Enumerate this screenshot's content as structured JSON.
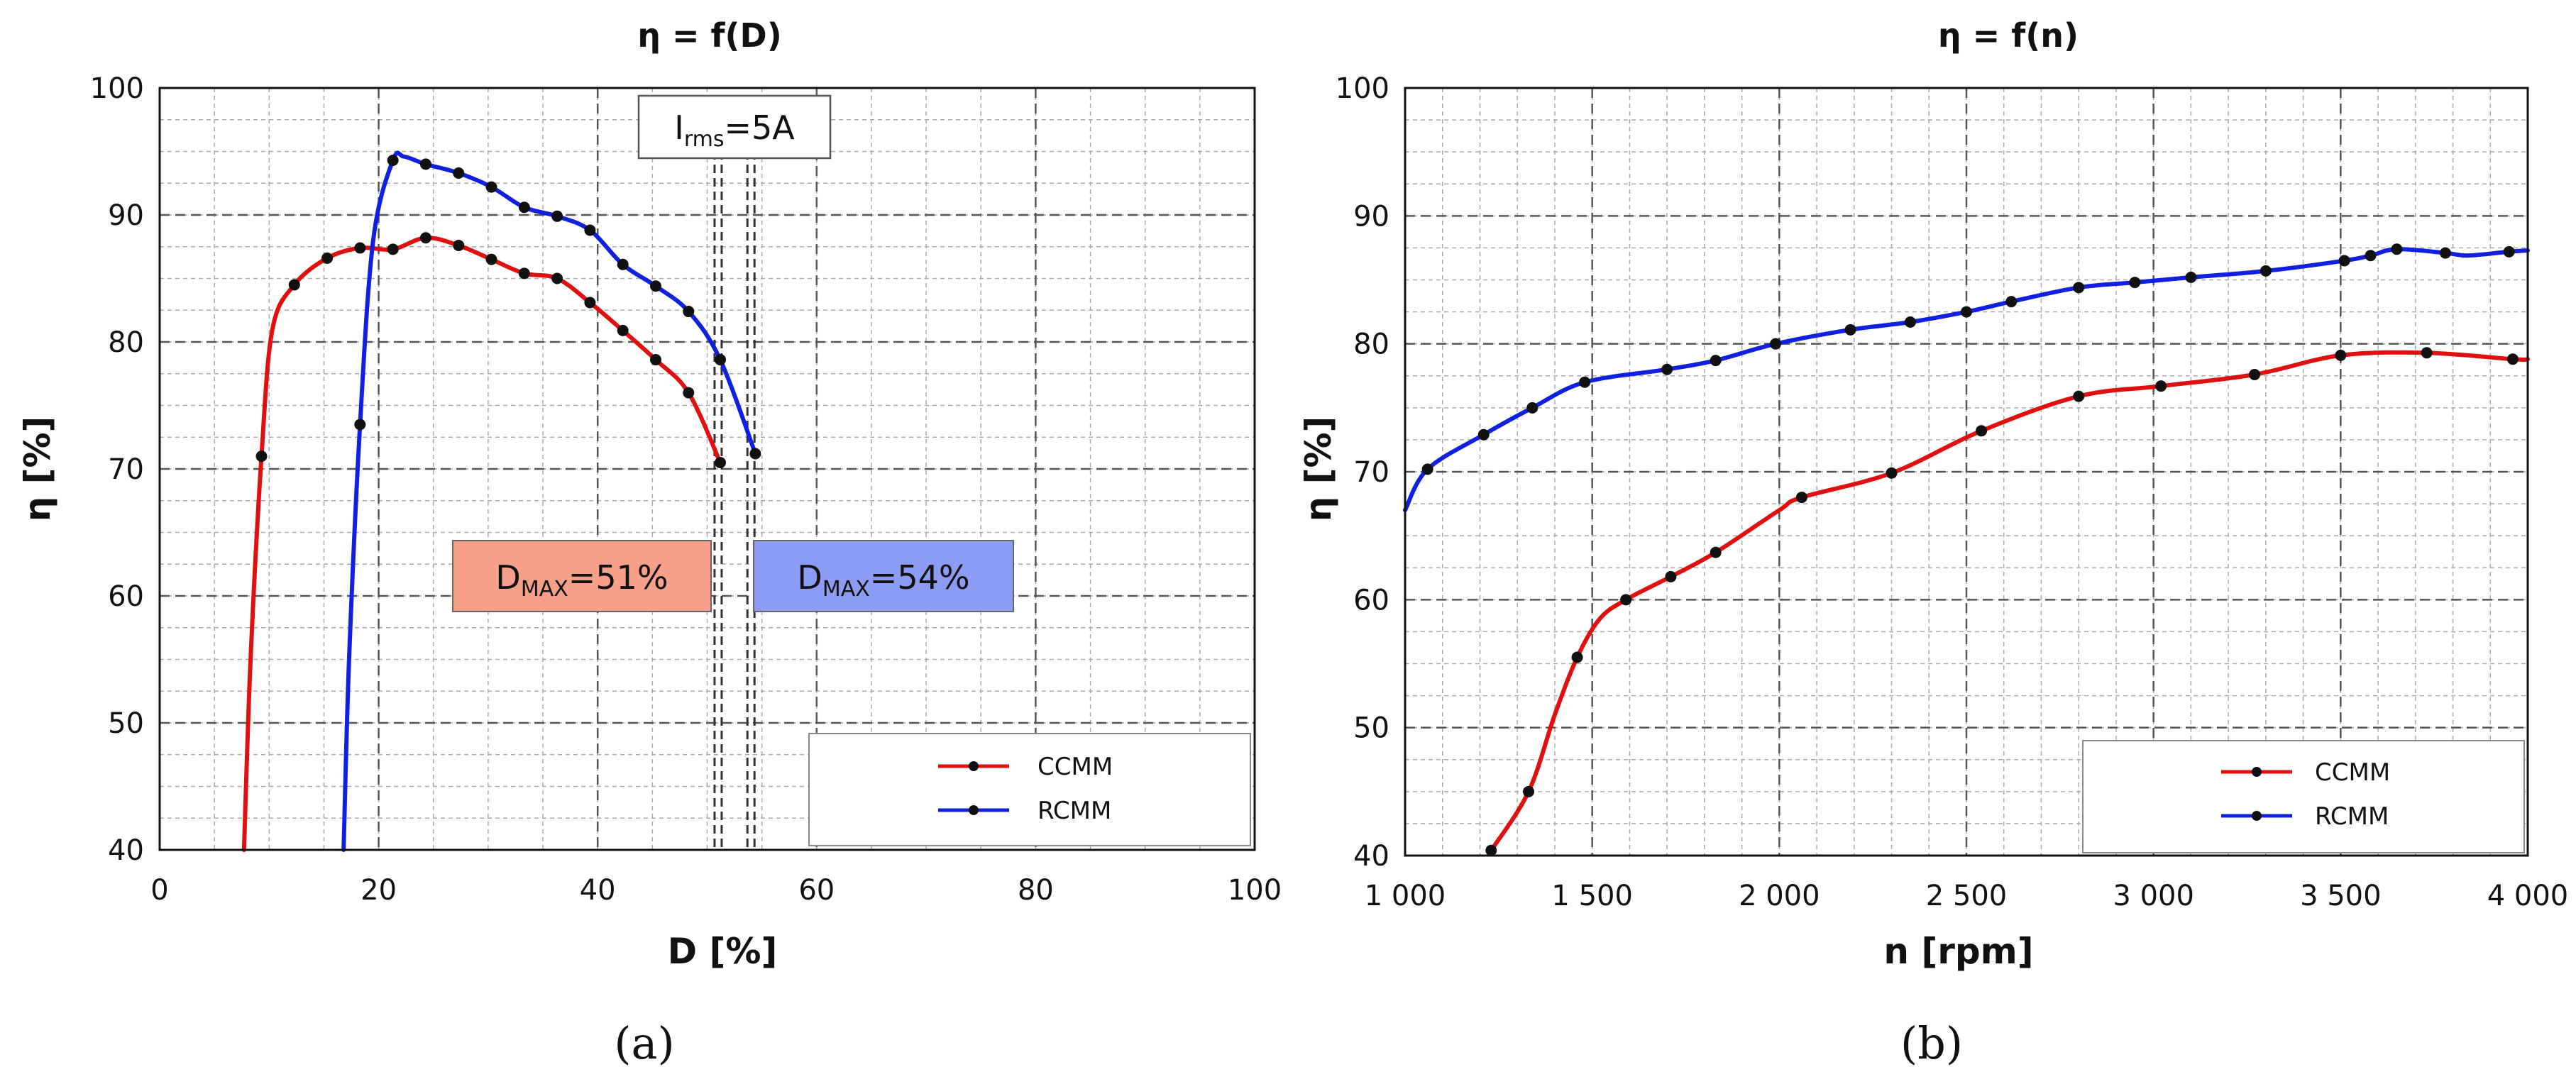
{
  "colors": {
    "ccmm": "#e01010",
    "rcmm": "#1020e0",
    "marker": "#111111",
    "dmax_ccmm_box": "#f6a08c",
    "dmax_rcmm_box": "#8c9cf2",
    "grid_major": "#555555",
    "grid_minor": "#aaaaaa"
  },
  "chart_data": [
    {
      "type": "line",
      "caption": "(a)",
      "title": "η = f(D)",
      "xlabel": "D [%]",
      "ylabel": "η [%]",
      "xlim": [
        0,
        100
      ],
      "ylim": [
        40,
        100
      ],
      "xticks": [
        0,
        20,
        40,
        60,
        80,
        100
      ],
      "yticks": [
        40,
        50,
        60,
        70,
        80,
        90,
        100
      ],
      "x_tick_labels": [
        "0",
        "20",
        "40",
        "60",
        "80",
        "100"
      ],
      "y_tick_labels": [
        "40",
        "50",
        "60",
        "70",
        "80",
        "90",
        "100"
      ],
      "grid": true,
      "legend": {
        "position": "bottom-right",
        "entries": [
          "CCMM",
          "RCMM"
        ]
      },
      "series": [
        {
          "name": "CCMM",
          "color_key": "ccmm",
          "curve": [
            [
              7.7,
              40
            ],
            [
              8.3,
              55
            ],
            [
              9.3,
              71
            ],
            [
              10.3,
              81
            ],
            [
              12.3,
              84.5
            ],
            [
              15.3,
              86.6
            ],
            [
              18.3,
              87.4
            ],
            [
              21.3,
              87.3
            ],
            [
              24.3,
              88.2
            ],
            [
              27.3,
              87.6
            ],
            [
              30.3,
              86.5
            ],
            [
              33.3,
              85.4
            ],
            [
              36.3,
              85
            ],
            [
              39.3,
              83.1
            ],
            [
              42.3,
              80.9
            ],
            [
              45.3,
              78.6
            ],
            [
              48.3,
              76
            ],
            [
              51.2,
              70.5
            ]
          ],
          "markers": [
            [
              9.3,
              71
            ],
            [
              12.3,
              84.5
            ],
            [
              15.3,
              86.6
            ],
            [
              18.3,
              87.4
            ],
            [
              21.3,
              87.3
            ],
            [
              24.3,
              88.2
            ],
            [
              27.3,
              87.6
            ],
            [
              30.3,
              86.5
            ],
            [
              33.3,
              85.4
            ],
            [
              36.3,
              85
            ],
            [
              39.3,
              83.1
            ],
            [
              42.3,
              80.9
            ],
            [
              45.3,
              78.6
            ],
            [
              48.3,
              76
            ],
            [
              51.2,
              70.5
            ]
          ]
        },
        {
          "name": "RCMM",
          "color_key": "rcmm",
          "curve": [
            [
              16.8,
              40
            ],
            [
              17.3,
              55
            ],
            [
              18.3,
              73.5
            ],
            [
              19.5,
              88
            ],
            [
              21.3,
              94.3
            ],
            [
              22.3,
              94.6
            ],
            [
              24.3,
              94
            ],
            [
              27.3,
              93.3
            ],
            [
              30.3,
              92.2
            ],
            [
              33.3,
              90.6
            ],
            [
              36.3,
              89.9
            ],
            [
              39.3,
              88.8
            ],
            [
              42.3,
              86.1
            ],
            [
              45.3,
              84.4
            ],
            [
              48.3,
              82.4
            ],
            [
              51.2,
              78.6
            ],
            [
              54.4,
              71.2
            ]
          ],
          "markers": [
            [
              18.3,
              73.5
            ],
            [
              21.3,
              94.3
            ],
            [
              24.3,
              94
            ],
            [
              27.3,
              93.3
            ],
            [
              30.3,
              92.2
            ],
            [
              33.3,
              90.6
            ],
            [
              36.3,
              89.9
            ],
            [
              39.3,
              88.8
            ],
            [
              42.3,
              86.1
            ],
            [
              45.3,
              84.4
            ],
            [
              48.3,
              82.4
            ],
            [
              51.2,
              78.6
            ],
            [
              54.4,
              71.2
            ]
          ]
        }
      ],
      "annotations": {
        "current_box": {
          "main": "I",
          "sub": "rms",
          "rest": "=5A"
        },
        "dmax_ccmm": {
          "main": "D",
          "sub": "MAX",
          "rest": "=51%",
          "x_value": 51
        },
        "dmax_rcmm": {
          "main": "D",
          "sub": "MAX",
          "rest": "=54%",
          "x_value": 54
        }
      }
    },
    {
      "type": "line",
      "caption": "(b)",
      "title": "η = f(n)",
      "xlabel": "n [rpm]",
      "ylabel": "η [%]",
      "xlim": [
        1000,
        4000
      ],
      "ylim": [
        40,
        100
      ],
      "xticks": [
        1000,
        1500,
        2000,
        2500,
        3000,
        3500,
        4000
      ],
      "yticks": [
        40,
        50,
        60,
        70,
        80,
        90,
        100
      ],
      "x_tick_labels": [
        "1 000",
        "1 500",
        "2 000",
        "2 500",
        "3 000",
        "3 500",
        "4 000"
      ],
      "y_tick_labels": [
        "40",
        "50",
        "60",
        "70",
        "80",
        "90",
        "100"
      ],
      "grid": true,
      "legend": {
        "position": "bottom-right",
        "entries": [
          "CCMM",
          "RCMM"
        ]
      },
      "series": [
        {
          "name": "CCMM",
          "color_key": "ccmm",
          "curve": [
            [
              1230,
              40.4
            ],
            [
              1330,
              45
            ],
            [
              1400,
              51
            ],
            [
              1460,
              55.5
            ],
            [
              1520,
              58.5
            ],
            [
              1590,
              60
            ],
            [
              1710,
              61.8
            ],
            [
              1830,
              63.7
            ],
            [
              2000,
              67
            ],
            [
              2060,
              68
            ],
            [
              2300,
              69.9
            ],
            [
              2540,
              73.2
            ],
            [
              2800,
              75.9
            ],
            [
              3020,
              76.7
            ],
            [
              3270,
              77.6
            ],
            [
              3500,
              79.1
            ],
            [
              3730,
              79.3
            ],
            [
              3960,
              78.8
            ],
            [
              4000,
              78.8
            ]
          ],
          "markers": [
            [
              1230,
              40.4
            ],
            [
              1330,
              45
            ],
            [
              1460,
              55.5
            ],
            [
              1590,
              60
            ],
            [
              1710,
              61.8
            ],
            [
              1830,
              63.7
            ],
            [
              2060,
              68
            ],
            [
              2300,
              69.9
            ],
            [
              2540,
              73.2
            ],
            [
              2800,
              75.9
            ],
            [
              3020,
              76.7
            ],
            [
              3270,
              77.6
            ],
            [
              3500,
              79.1
            ],
            [
              3730,
              79.3
            ],
            [
              3960,
              78.8
            ]
          ]
        },
        {
          "name": "RCMM",
          "color_key": "rcmm",
          "curve": [
            [
              1000,
              67
            ],
            [
              1060,
              70.2
            ],
            [
              1210,
              72.9
            ],
            [
              1340,
              75
            ],
            [
              1480,
              77
            ],
            [
              1700,
              78
            ],
            [
              1830,
              78.7
            ],
            [
              1990,
              80
            ],
            [
              2190,
              81.1
            ],
            [
              2350,
              81.7
            ],
            [
              2500,
              82.5
            ],
            [
              2620,
              83.3
            ],
            [
              2800,
              84.4
            ],
            [
              2950,
              84.8
            ],
            [
              3100,
              85.2
            ],
            [
              3300,
              85.7
            ],
            [
              3510,
              86.5
            ],
            [
              3580,
              86.9
            ],
            [
              3650,
              87.4
            ],
            [
              3780,
              87.1
            ],
            [
              3840,
              86.9
            ],
            [
              3950,
              87.2
            ],
            [
              4000,
              87.3
            ]
          ],
          "markers": [
            [
              1060,
              70.2
            ],
            [
              1210,
              72.9
            ],
            [
              1340,
              75
            ],
            [
              1480,
              77
            ],
            [
              1700,
              78
            ],
            [
              1830,
              78.7
            ],
            [
              1990,
              80
            ],
            [
              2190,
              81.1
            ],
            [
              2350,
              81.7
            ],
            [
              2500,
              82.5
            ],
            [
              2620,
              83.3
            ],
            [
              2800,
              84.4
            ],
            [
              2950,
              84.8
            ],
            [
              3100,
              85.2
            ],
            [
              3300,
              85.7
            ],
            [
              3510,
              86.5
            ],
            [
              3580,
              86.9
            ],
            [
              3650,
              87.4
            ],
            [
              3780,
              87.1
            ],
            [
              3950,
              87.2
            ]
          ]
        }
      ]
    }
  ]
}
